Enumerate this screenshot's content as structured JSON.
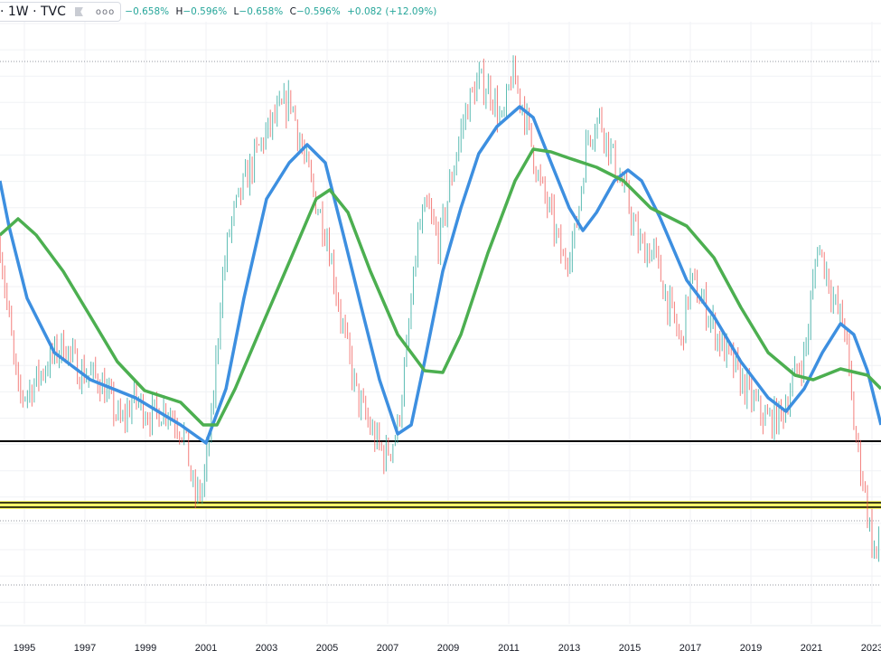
{
  "header": {
    "symbol_suffix": "· 1W · TVC",
    "flag_icon": "flag-icon",
    "more_icon": "more-dots-icon",
    "open_value": "−0.658%",
    "high_label": "H",
    "high_value": "−0.596%",
    "low_label": "L",
    "low_value": "−0.658%",
    "close_label": "C",
    "close_value": "−0.596%",
    "change": "+0.082 (+12.09%)"
  },
  "colors": {
    "up": "#26a69a",
    "down": "#ef5350",
    "ma_fast": "#3d8fe0",
    "ma_slow": "#4caf50",
    "support_line": "#000000",
    "highlight_band": "#f5f56a"
  },
  "chart_data": {
    "type": "line",
    "title": "",
    "xlabel": "",
    "ylabel": "",
    "x_ticks": [
      "1995",
      "1997",
      "1999",
      "2001",
      "2003",
      "2005",
      "2007",
      "2009",
      "2011",
      "2013",
      "2015",
      "2017",
      "2019",
      "2021",
      "2023"
    ],
    "xlim": [
      1994.2,
      2023.3
    ],
    "ylim": [
      -1.85,
      4.6
    ],
    "grid": true,
    "y_axis_labels_visible": false,
    "series": [
      {
        "kind": "candles-path",
        "points": [
          [
            1994.2,
            2.18
          ],
          [
            1994.4,
            1.58
          ],
          [
            1994.8,
            0.48
          ],
          [
            1995.2,
            0.58
          ],
          [
            1995.8,
            0.88
          ],
          [
            1996.3,
            1.08
          ],
          [
            1996.8,
            0.78
          ],
          [
            1997.5,
            0.68
          ],
          [
            1998.2,
            0.18
          ],
          [
            1998.6,
            0.48
          ],
          [
            1999.2,
            0.28
          ],
          [
            1999.7,
            0.38
          ],
          [
            2000.3,
            0.08
          ],
          [
            2000.6,
            -0.62
          ],
          [
            2000.9,
            -0.52
          ],
          [
            2001.2,
            0.28
          ],
          [
            2001.5,
            1.68
          ],
          [
            2001.8,
            2.38
          ],
          [
            2002.3,
            2.88
          ],
          [
            2002.8,
            3.28
          ],
          [
            2003.3,
            3.58
          ],
          [
            2003.8,
            3.78
          ],
          [
            2004.2,
            3.18
          ],
          [
            2004.6,
            2.68
          ],
          [
            2005.0,
            2.28
          ],
          [
            2005.5,
            1.28
          ],
          [
            2006.0,
            0.48
          ],
          [
            2006.5,
            0.08
          ],
          [
            2006.9,
            -0.17
          ],
          [
            2007.3,
            0.08
          ],
          [
            2007.6,
            0.88
          ],
          [
            2008.0,
            2.28
          ],
          [
            2008.3,
            2.58
          ],
          [
            2008.7,
            2.18
          ],
          [
            2009.2,
            3.08
          ],
          [
            2009.6,
            3.68
          ],
          [
            2010.0,
            3.98
          ],
          [
            2010.4,
            3.88
          ],
          [
            2010.8,
            3.48
          ],
          [
            2011.1,
            4.08
          ],
          [
            2011.5,
            3.68
          ],
          [
            2012.0,
            2.88
          ],
          [
            2012.4,
            2.48
          ],
          [
            2012.8,
            1.98
          ],
          [
            2013.2,
            2.28
          ],
          [
            2013.6,
            3.38
          ],
          [
            2014.0,
            3.58
          ],
          [
            2014.5,
            3.08
          ],
          [
            2014.9,
            2.68
          ],
          [
            2015.3,
            2.18
          ],
          [
            2015.8,
            2.08
          ],
          [
            2016.3,
            1.48
          ],
          [
            2016.7,
            1.08
          ],
          [
            2017.0,
            1.78
          ],
          [
            2017.5,
            1.48
          ],
          [
            2018.0,
            1.08
          ],
          [
            2018.5,
            0.78
          ],
          [
            2019.0,
            0.48
          ],
          [
            2019.5,
            0.23
          ],
          [
            2020.0,
            0.28
          ],
          [
            2020.4,
            0.68
          ],
          [
            2020.8,
            0.98
          ],
          [
            2021.2,
            2.18
          ],
          [
            2021.5,
            1.88
          ],
          [
            2021.8,
            1.48
          ],
          [
            2022.1,
            1.28
          ],
          [
            2022.4,
            0.18
          ],
          [
            2022.7,
            -0.42
          ],
          [
            2023.0,
            -1.12
          ],
          [
            2023.2,
            -1.32
          ],
          [
            2023.3,
            -0.6
          ]
        ]
      },
      {
        "kind": "ma-fast",
        "points": [
          [
            1994.19,
            2.88
          ],
          [
            1994.49,
            2.38
          ],
          [
            1995.09,
            1.58
          ],
          [
            1995.99,
            0.98
          ],
          [
            1997.18,
            0.68
          ],
          [
            1998.67,
            0.48
          ],
          [
            2000.16,
            0.18
          ],
          [
            2001.0,
            -0.02
          ],
          [
            2001.66,
            0.58
          ],
          [
            2002.25,
            1.58
          ],
          [
            2003.0,
            2.68
          ],
          [
            2003.75,
            3.08
          ],
          [
            2004.34,
            3.28
          ],
          [
            2004.94,
            3.08
          ],
          [
            2005.54,
            2.28
          ],
          [
            2006.13,
            1.48
          ],
          [
            2006.73,
            0.68
          ],
          [
            2007.33,
            0.08
          ],
          [
            2007.78,
            0.18
          ],
          [
            2008.22,
            0.88
          ],
          [
            2008.82,
            1.88
          ],
          [
            2009.42,
            2.58
          ],
          [
            2010.01,
            3.18
          ],
          [
            2010.61,
            3.48
          ],
          [
            2011.36,
            3.7
          ],
          [
            2011.81,
            3.58
          ],
          [
            2012.4,
            3.08
          ],
          [
            2013.0,
            2.58
          ],
          [
            2013.45,
            2.33
          ],
          [
            2013.9,
            2.53
          ],
          [
            2014.49,
            2.88
          ],
          [
            2014.94,
            3.0
          ],
          [
            2015.39,
            2.88
          ],
          [
            2015.99,
            2.48
          ],
          [
            2016.88,
            1.78
          ],
          [
            2017.78,
            1.38
          ],
          [
            2018.67,
            0.88
          ],
          [
            2019.57,
            0.48
          ],
          [
            2020.16,
            0.33
          ],
          [
            2020.76,
            0.58
          ],
          [
            2021.36,
            0.98
          ],
          [
            2021.96,
            1.3
          ],
          [
            2022.4,
            1.18
          ],
          [
            2022.85,
            0.78
          ],
          [
            2023.3,
            0.18
          ]
        ]
      },
      {
        "kind": "ma-slow",
        "points": [
          [
            1994.19,
            2.28
          ],
          [
            1994.79,
            2.46
          ],
          [
            1995.39,
            2.28
          ],
          [
            1996.28,
            1.88
          ],
          [
            1997.18,
            1.38
          ],
          [
            1998.07,
            0.88
          ],
          [
            1998.97,
            0.56
          ],
          [
            2000.16,
            0.43
          ],
          [
            2000.91,
            0.18
          ],
          [
            2001.36,
            0.18
          ],
          [
            2001.96,
            0.58
          ],
          [
            2002.85,
            1.28
          ],
          [
            2003.75,
            1.98
          ],
          [
            2004.64,
            2.68
          ],
          [
            2005.09,
            2.78
          ],
          [
            2005.69,
            2.53
          ],
          [
            2006.43,
            1.88
          ],
          [
            2007.33,
            1.18
          ],
          [
            2008.22,
            0.78
          ],
          [
            2008.82,
            0.76
          ],
          [
            2009.42,
            1.18
          ],
          [
            2010.31,
            2.08
          ],
          [
            2011.21,
            2.88
          ],
          [
            2011.81,
            3.23
          ],
          [
            2012.4,
            3.2
          ],
          [
            2013.0,
            3.13
          ],
          [
            2013.9,
            3.03
          ],
          [
            2014.79,
            2.88
          ],
          [
            2015.69,
            2.58
          ],
          [
            2016.88,
            2.38
          ],
          [
            2017.78,
            2.03
          ],
          [
            2018.67,
            1.48
          ],
          [
            2019.57,
            0.98
          ],
          [
            2020.46,
            0.73
          ],
          [
            2021.06,
            0.68
          ],
          [
            2021.96,
            0.8
          ],
          [
            2022.85,
            0.73
          ],
          [
            2023.3,
            0.58
          ]
        ]
      }
    ],
    "horizontal_levels": [
      {
        "kind": "solid",
        "value": 0.0
      },
      {
        "kind": "band",
        "from": -0.75,
        "to": -0.66,
        "edges": [
          -0.68,
          -0.73
        ]
      },
      {
        "kind": "dotted",
        "value": 4.2
      },
      {
        "kind": "dotted",
        "value": -0.88
      },
      {
        "kind": "dotted",
        "value": -1.59
      }
    ]
  }
}
